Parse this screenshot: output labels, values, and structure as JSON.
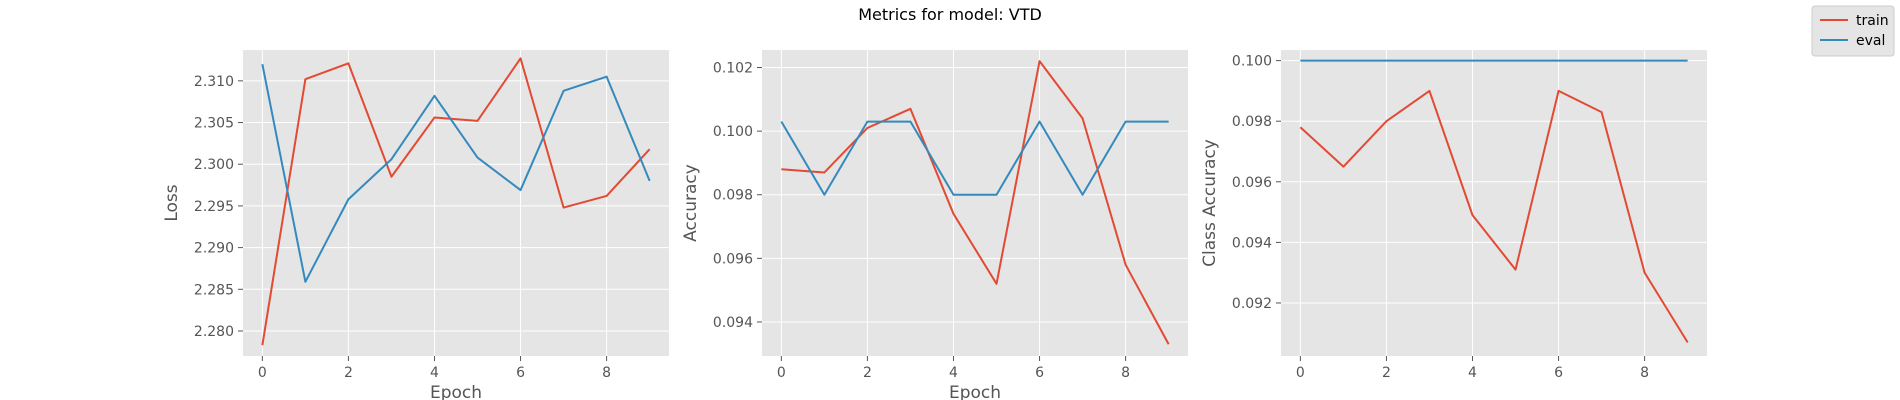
{
  "figure": {
    "title": "Metrics for model: VTD",
    "legend": {
      "placement": "top-right",
      "entries": [
        {
          "name": "train",
          "color": "#E24A33"
        },
        {
          "name": "eval",
          "color": "#348ABD"
        }
      ]
    },
    "style": {
      "background": "#E5E5E5",
      "grid": true,
      "grid_color": "#FFFFFF"
    }
  },
  "chart_data": [
    {
      "type": "line",
      "title": "",
      "xlabel": "Epoch",
      "ylabel": "Loss",
      "x": [
        0,
        1,
        2,
        3,
        4,
        5,
        6,
        7,
        8,
        9
      ],
      "xlim": [
        -0.45,
        9.45
      ],
      "ylim": [
        2.277,
        2.3137
      ],
      "xticks": [
        0,
        2,
        4,
        6,
        8
      ],
      "yticks": [
        2.28,
        2.285,
        2.29,
        2.295,
        2.3,
        2.305,
        2.31
      ],
      "ytick_labels": [
        "2.280",
        "2.285",
        "2.290",
        "2.295",
        "2.300",
        "2.305",
        "2.310"
      ],
      "series": [
        {
          "name": "train",
          "color": "#E24A33",
          "values": [
            2.2783,
            2.3102,
            2.3121,
            2.2985,
            2.3056,
            2.3052,
            2.3127,
            2.2948,
            2.2962,
            2.3018
          ]
        },
        {
          "name": "eval",
          "color": "#348ABD",
          "values": [
            2.312,
            2.2859,
            2.2958,
            2.3006,
            2.3082,
            2.3008,
            2.2969,
            2.3088,
            2.3105,
            2.298
          ]
        }
      ]
    },
    {
      "type": "line",
      "title": "",
      "xlabel": "Epoch",
      "ylabel": "Accuracy",
      "x": [
        0,
        1,
        2,
        3,
        4,
        5,
        6,
        7,
        8,
        9
      ],
      "xlim": [
        -0.45,
        9.45
      ],
      "ylim": [
        0.09293,
        0.10255
      ],
      "xticks": [
        0,
        2,
        4,
        6,
        8
      ],
      "yticks": [
        0.094,
        0.096,
        0.098,
        0.1,
        0.102
      ],
      "ytick_labels": [
        "0.094",
        "0.096",
        "0.098",
        "0.100",
        "0.102"
      ],
      "series": [
        {
          "name": "train",
          "color": "#E24A33",
          "values": [
            0.0988,
            0.0987,
            0.1001,
            0.1007,
            0.0974,
            0.0952,
            0.1022,
            0.1004,
            0.0958,
            0.0933
          ]
        },
        {
          "name": "eval",
          "color": "#348ABD",
          "values": [
            0.1003,
            0.098,
            0.1003,
            0.1003,
            0.098,
            0.098,
            0.1003,
            0.098,
            0.1003,
            0.1003
          ]
        }
      ]
    },
    {
      "type": "line",
      "title": "",
      "xlabel": "",
      "ylabel": "Class Accuracy",
      "x": [
        0,
        1,
        2,
        3,
        4,
        5,
        6,
        7,
        8,
        9
      ],
      "xlim": [
        -0.45,
        9.45
      ],
      "ylim": [
        0.09025,
        0.10035
      ],
      "xticks": [
        0,
        2,
        4,
        6,
        8
      ],
      "yticks": [
        0.092,
        0.094,
        0.096,
        0.098,
        0.1
      ],
      "ytick_labels": [
        "0.092",
        "0.094",
        "0.096",
        "0.098",
        "0.100"
      ],
      "series": [
        {
          "name": "train",
          "color": "#E24A33",
          "values": [
            0.0978,
            0.0965,
            0.098,
            0.099,
            0.0949,
            0.0931,
            0.099,
            0.0983,
            0.093,
            0.0907
          ]
        },
        {
          "name": "eval",
          "color": "#348ABD",
          "values": [
            0.1,
            0.1,
            0.1,
            0.1,
            0.1,
            0.1,
            0.1,
            0.1,
            0.1,
            0.1
          ]
        }
      ]
    }
  ]
}
